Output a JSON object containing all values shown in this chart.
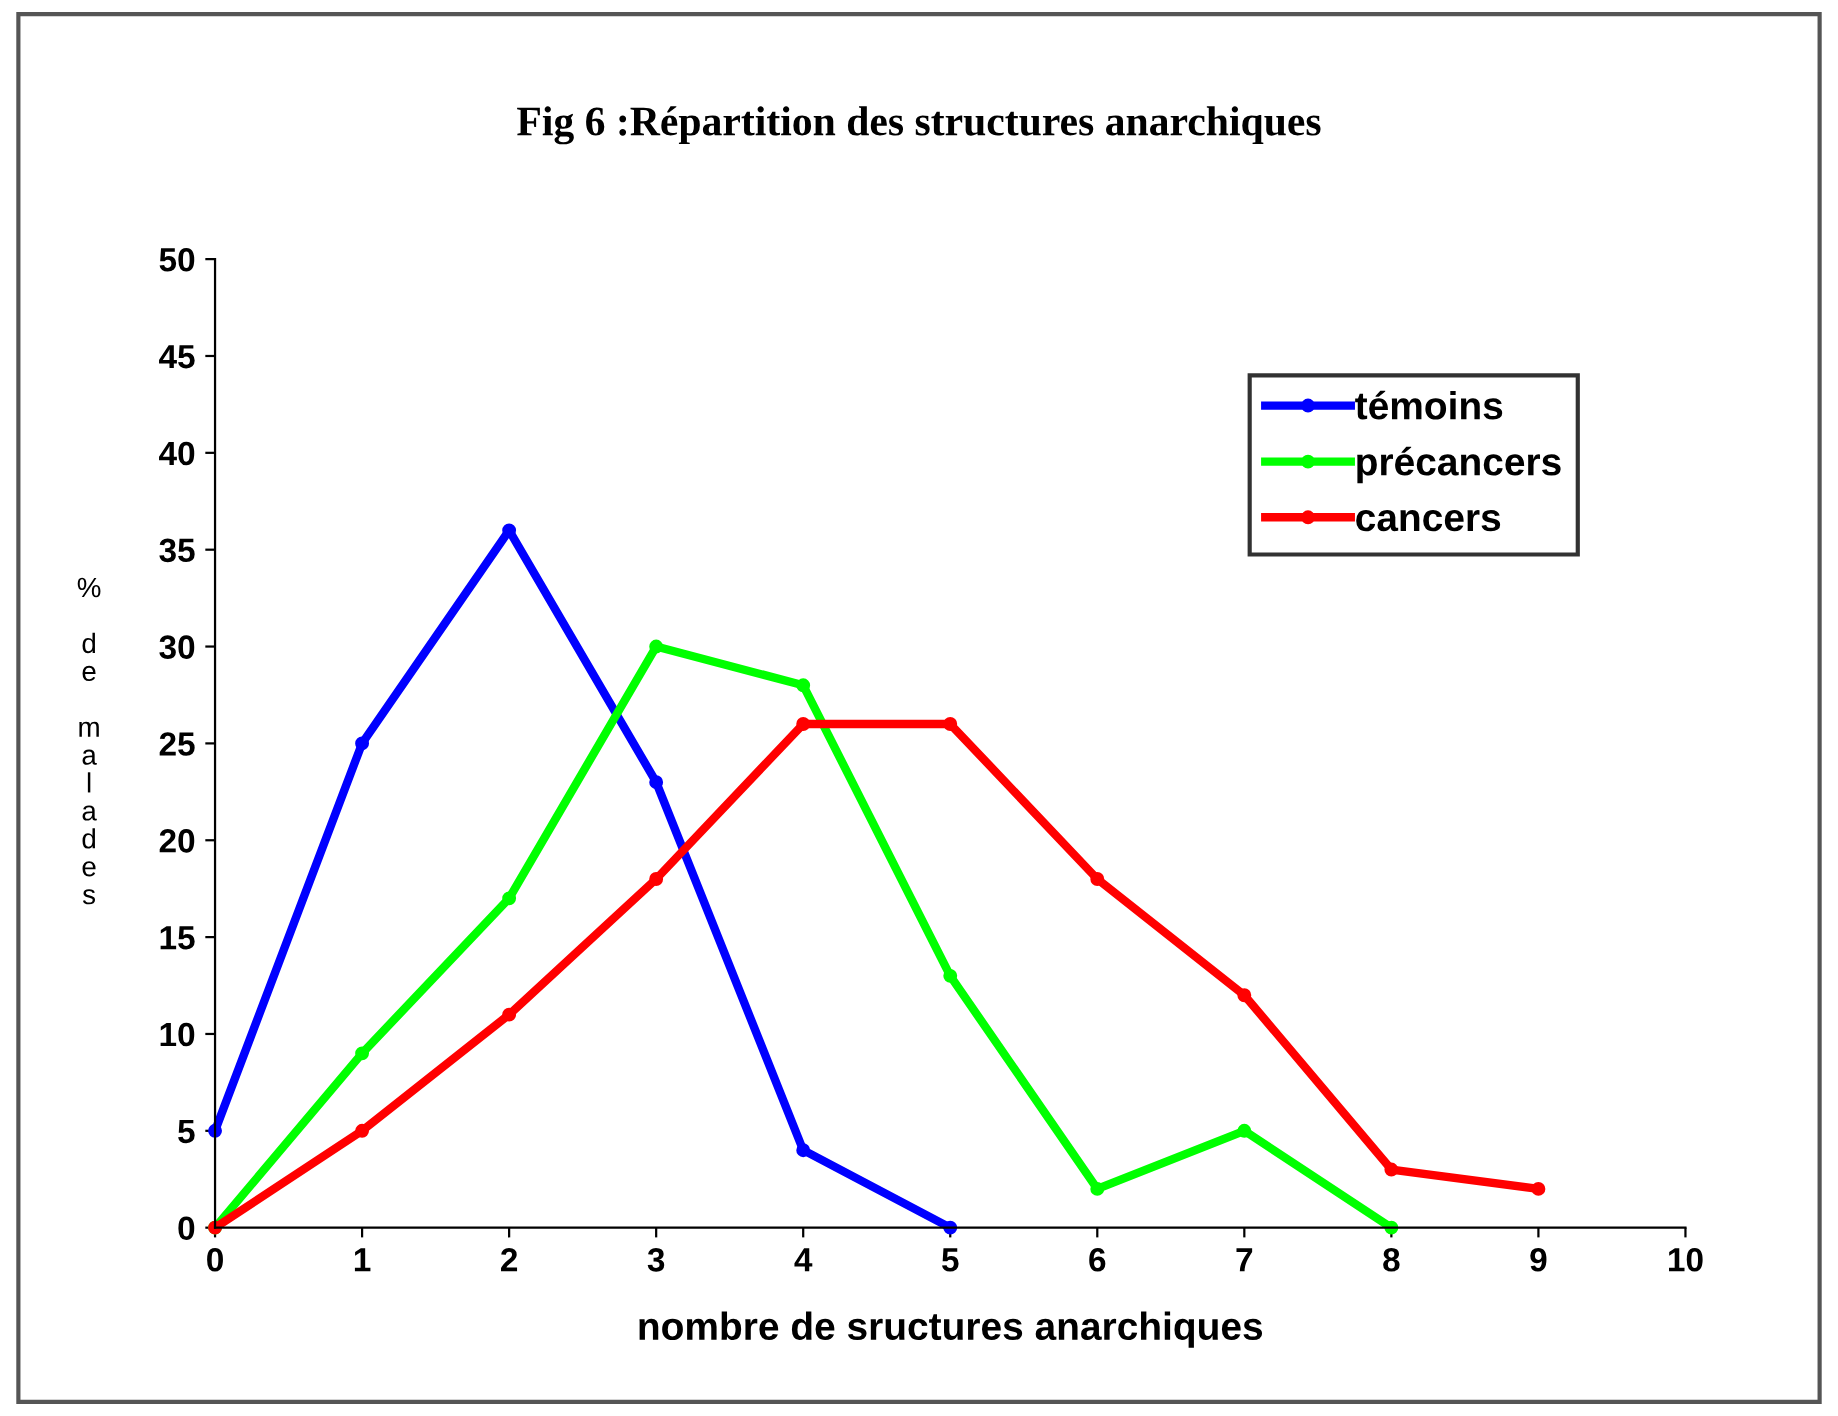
{
  "chart_data": {
    "type": "line",
    "title": "Fig 6 :Répartition des structures anarchiques",
    "xlabel": "nombre de sructures anarchiques",
    "ylabel": "% de malades",
    "xlim": [
      0,
      10
    ],
    "xticks": [
      0,
      1,
      2,
      3,
      4,
      5,
      6,
      7,
      8,
      9,
      10
    ],
    "ylim": [
      0,
      50
    ],
    "yticks": [
      0,
      5,
      10,
      15,
      20,
      25,
      30,
      35,
      40,
      45,
      50
    ],
    "grid": false,
    "legend": "top right",
    "marker": "circle",
    "line_style": "solid",
    "series": [
      {
        "name": "témoins",
        "color": "#0000ff",
        "x": [
          0,
          1,
          2,
          3,
          4,
          5
        ],
        "values": [
          5,
          25,
          36,
          23,
          4,
          0
        ]
      },
      {
        "name": "précancers",
        "color": "#00ff00",
        "x": [
          0,
          1,
          2,
          3,
          4,
          5,
          6,
          7,
          8
        ],
        "values": [
          0,
          9,
          17,
          30,
          28,
          13,
          2,
          5,
          0
        ]
      },
      {
        "name": "cancers",
        "color": "#ff0000",
        "x": [
          0,
          1,
          2,
          3,
          4,
          5,
          6,
          7,
          8,
          9
        ],
        "values": [
          0,
          5,
          11,
          18,
          26,
          26,
          18,
          12,
          3,
          2
        ]
      }
    ]
  }
}
